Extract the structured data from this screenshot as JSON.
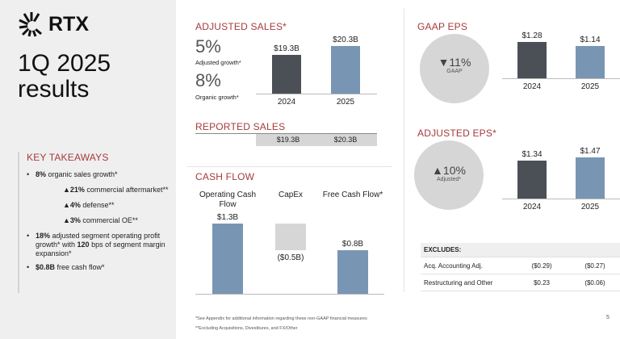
{
  "brand": {
    "logo_text": "RTX"
  },
  "title": {
    "line1": "1Q 2025",
    "line2": "results"
  },
  "takeaways": {
    "heading": "KEY TAKEAWAYS",
    "items": [
      {
        "bold": "8%",
        "text": " organic sales growth*"
      },
      {
        "bold": "▲21%",
        "text": " commercial aftermarket**"
      },
      {
        "bold": "▲4%",
        "text": " defense**"
      },
      {
        "bold": "▲3%",
        "text": " commercial OE**"
      },
      {
        "bold": "18%",
        "text": " adjusted segment operating profit growth* with ",
        "bold2": "120",
        "text2": " bps of segment margin expansion*"
      },
      {
        "bold": "$0.8B",
        "text": " free cash flow*"
      }
    ]
  },
  "adjusted_sales": {
    "heading": "ADJUSTED SALES*",
    "stat1": "5%",
    "stat1_label": "Adjusted growth*",
    "stat2": "8%",
    "stat2_label": "Organic growth*"
  },
  "reported_sales": {
    "heading": "REPORTED SALES",
    "values": [
      "$19.3B",
      "$20.3B"
    ]
  },
  "cash_flow": {
    "heading": "CASH FLOW"
  },
  "gaap_eps": {
    "heading": "GAAP EPS",
    "change": "▼11%",
    "change_label": "GAAP"
  },
  "adjusted_eps": {
    "heading": "ADJUSTED EPS*",
    "change": "▲10%",
    "change_label": "Adjusted*"
  },
  "excludes": {
    "heading": "EXCLUDES:",
    "rows": [
      {
        "label": "Acq. Accounting Adj.",
        "v2024": "($0.29)",
        "v2025": "($0.27)"
      },
      {
        "label": "Restructuring and Other",
        "v2024": "$0.23",
        "v2025": "($0.06)"
      }
    ]
  },
  "footnotes": [
    "*See Appendix for additional information regarding these non-GAAP financial measures",
    "**Excluding Acquisitions, Divestitures, and FX/Other"
  ],
  "page_number": "5",
  "colors": {
    "accent": "#a53a3c",
    "bar_2024": "#4a5055",
    "bar_2025": "#7896b4",
    "neutral": "#d6d6d6"
  },
  "chart_data": [
    {
      "type": "bar",
      "id": "adjusted_sales",
      "categories": [
        "2024",
        "2025"
      ],
      "values": [
        19.3,
        20.3
      ],
      "labels": [
        "$19.3B",
        "$20.3B"
      ],
      "ylim": [
        15,
        21
      ]
    },
    {
      "type": "bar",
      "id": "cash_flow",
      "subtype": "waterfall",
      "categories": [
        "Operating Cash Flow",
        "CapEx",
        "Free Cash Flow*"
      ],
      "values": [
        1.3,
        -0.5,
        0.8
      ],
      "labels": [
        "$1.3B",
        "($0.5B)",
        "$0.8B"
      ]
    },
    {
      "type": "bar",
      "id": "gaap_eps",
      "categories": [
        "2024",
        "2025"
      ],
      "values": [
        1.28,
        1.14
      ],
      "labels": [
        "$1.28",
        "$1.14"
      ]
    },
    {
      "type": "bar",
      "id": "adjusted_eps",
      "categories": [
        "2024",
        "2025"
      ],
      "values": [
        1.34,
        1.47
      ],
      "labels": [
        "$1.34",
        "$1.47"
      ]
    }
  ]
}
